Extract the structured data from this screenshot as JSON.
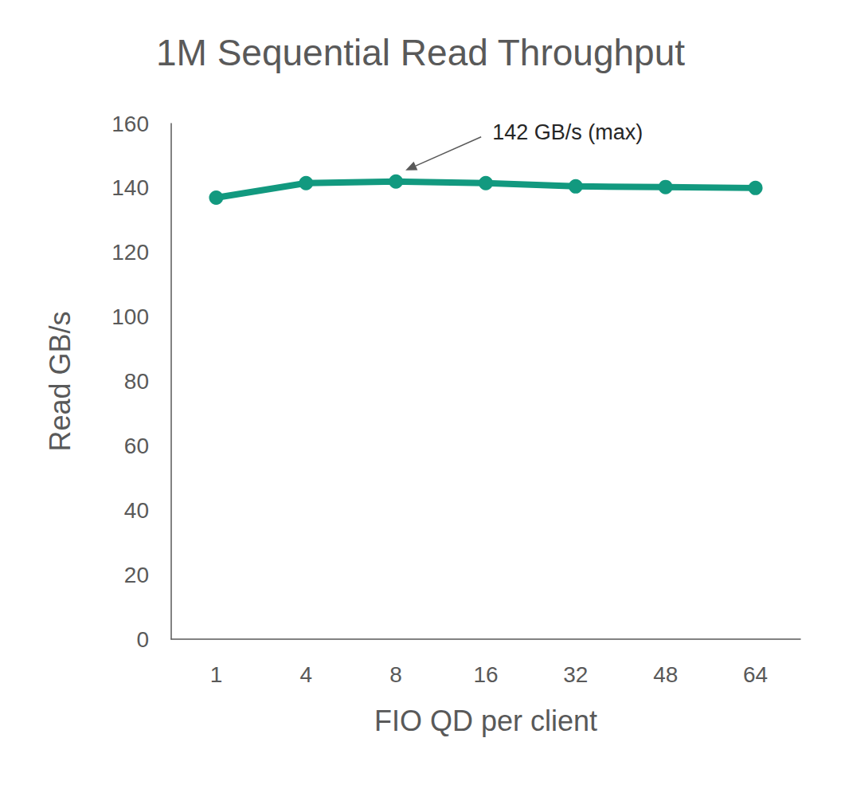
{
  "chart_data": {
    "type": "line",
    "title": "1M Sequential Read Throughput",
    "x_label": "FIO QD per client",
    "y_label": "Read GB/s",
    "categories": [
      "1",
      "4",
      "8",
      "16",
      "32",
      "48",
      "64"
    ],
    "values": [
      137,
      141.5,
      142,
      141.5,
      140.5,
      140.3,
      140
    ],
    "color": "#12997f",
    "marker": "circle",
    "ylim": [
      0,
      160
    ],
    "yticks": [
      0,
      20,
      40,
      60,
      80,
      100,
      120,
      140,
      160
    ],
    "grid": false,
    "annotations": [
      {
        "text": "142 GB/s (max)",
        "category": "8",
        "value": 142
      }
    ]
  }
}
